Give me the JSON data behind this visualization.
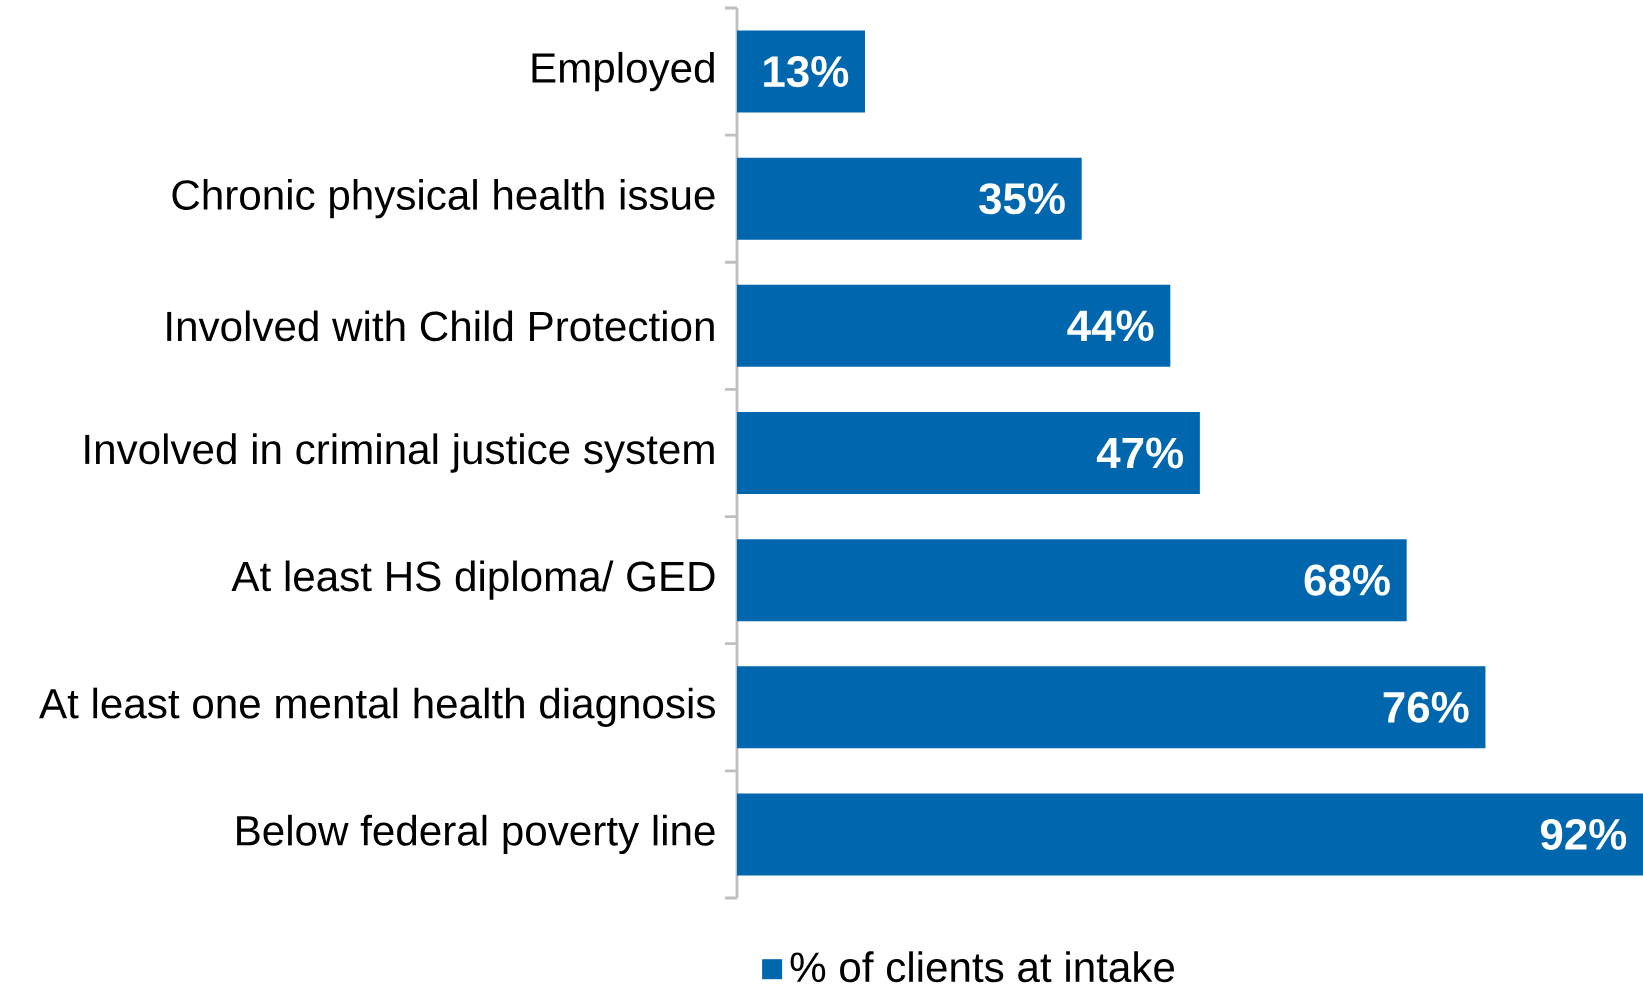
{
  "chart_data": {
    "type": "bar",
    "orientation": "horizontal",
    "categories": [
      "Employed",
      "Chronic physical health issue",
      "Involved with Child Protection",
      "Involved in criminal justice system",
      "At least HS diploma/ GED",
      "At least one mental health diagnosis",
      "Below federal poverty line"
    ],
    "series": [
      {
        "name": "% of clients at intake",
        "color": "#0066ad",
        "values": [
          13,
          35,
          44,
          47,
          68,
          76,
          92
        ],
        "value_labels": [
          "13%",
          "35%",
          "44%",
          "47%",
          "68%",
          "76%",
          "92%"
        ]
      }
    ],
    "xlim": [
      0,
      92
    ],
    "legend": "bottom"
  }
}
